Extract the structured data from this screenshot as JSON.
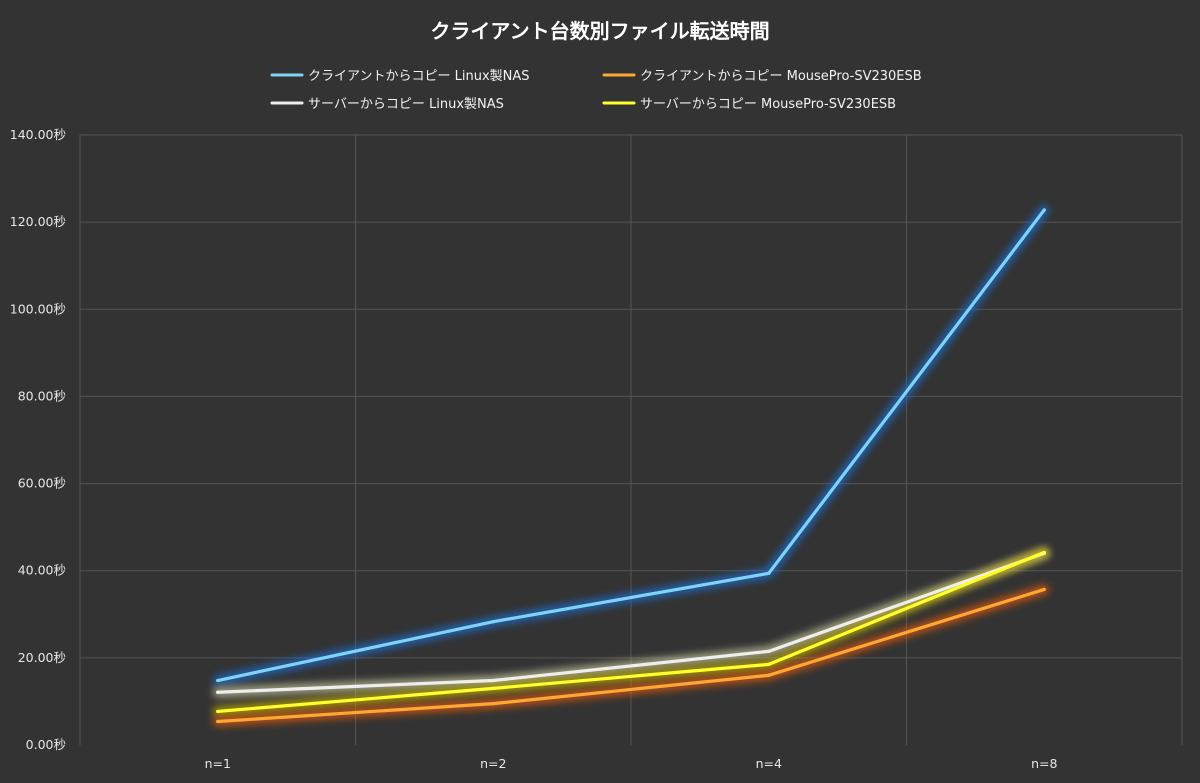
{
  "chart_data": {
    "type": "line",
    "title": "クライアント台数別ファイル転送時間",
    "categories": [
      "n=1",
      "n=2",
      "n=4",
      "n=8"
    ],
    "ylim": [
      0,
      140
    ],
    "ytick_labels": [
      "0.00秒",
      "20.00秒",
      "40.00秒",
      "60.00秒",
      "80.00秒",
      "100.00秒",
      "120.00秒",
      "140.00秒"
    ],
    "ytick_values": [
      0,
      20,
      40,
      60,
      80,
      100,
      120,
      140
    ],
    "grid": true,
    "legend_position": "top",
    "series": [
      {
        "name": "クライアントからコピー Linux製NAS",
        "color": "#7fd3f7",
        "glow": "#1f6fd6",
        "values": [
          14.8,
          28.3,
          39.4,
          122.8
        ]
      },
      {
        "name": "クライアントからコピー MousePro-SV230ESB",
        "color": "#ffa733",
        "glow": "#e05a10",
        "values": [
          5.4,
          9.5,
          16.0,
          35.7
        ]
      },
      {
        "name": "サーバーからコピー Linux製NAS",
        "color": "#eeeeee",
        "glow": "#c9c9a0",
        "values": [
          12.1,
          14.8,
          21.5,
          44.0
        ]
      },
      {
        "name": "サーバーからコピー MousePro-SV230ESB",
        "color": "#ffff2e",
        "glow": "#c8b400",
        "values": [
          7.7,
          13.0,
          18.5,
          44.2
        ]
      }
    ]
  }
}
